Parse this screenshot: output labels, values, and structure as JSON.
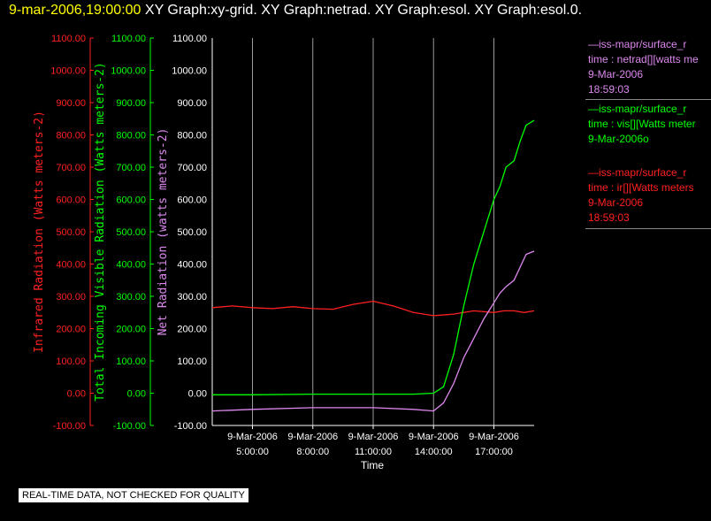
{
  "header": {
    "timestamp": "9-mar-2006,19:00:00",
    "graphs": "XY Graph:xy-grid.  XY Graph:netrad.  XY Graph:esol.  XY Graph:esol.0."
  },
  "legend": [
    {
      "line1": "—iss-mapr/surface_r",
      "line2": "time : netrad[][watts me",
      "line3": "9-Mar-2006",
      "line4": "18:59:03",
      "color": "#dd88ee"
    },
    {
      "line1": "—iss-mapr/surface_r",
      "line2": "time : vis[][Watts meter",
      "line3": "9-Mar-2006o",
      "line4": "",
      "color": "#00ff00"
    },
    {
      "line1": "—iss-mapr/surface_r",
      "line2": "time : ir[][Watts meters",
      "line3": "9-Mar-2006",
      "line4": "18:59:03",
      "color": "#ff2020"
    }
  ],
  "note": "REAL-TIME DATA, NOT CHECKED FOR QUALITY",
  "chart_data": {
    "type": "line",
    "xlabel": "Time",
    "x_ticks": [
      {
        "date": "9-Mar-2006",
        "time": "5:00:00",
        "hour": 5
      },
      {
        "date": "9-Mar-2006",
        "time": "8:00:00",
        "hour": 8
      },
      {
        "date": "9-Mar-2006",
        "time": "11:00:00",
        "hour": 11
      },
      {
        "date": "9-Mar-2006",
        "time": "14:00:00",
        "hour": 14
      },
      {
        "date": "9-Mar-2006",
        "time": "17:00:00",
        "hour": 17
      }
    ],
    "xlim": [
      3.0,
      19.0
    ],
    "ylim": [
      -100,
      1100
    ],
    "y_ticks": [
      "-100.00",
      "0.00",
      "100.00",
      "200.00",
      "300.00",
      "400.00",
      "500.00",
      "600.00",
      "700.00",
      "800.00",
      "900.00",
      "1000.00",
      "1100.00"
    ],
    "axes": [
      {
        "label": "Infrared Radiation (Watts meters-2)",
        "color": "#ff2020"
      },
      {
        "label": "Total Incoming Visible Radiation (Watts meters-2)",
        "color": "#00ff00"
      },
      {
        "label": "Net Radiation (watts meters-2)",
        "color": "#dd88ee"
      }
    ],
    "grid": true,
    "series": [
      {
        "name": "ir",
        "color": "#ff2020",
        "x": [
          3,
          4,
          5,
          6,
          7,
          8,
          9,
          10,
          11,
          12,
          13,
          14,
          15,
          16,
          17,
          17.5,
          18,
          18.5,
          19
        ],
        "y": [
          265,
          270,
          265,
          262,
          268,
          262,
          260,
          275,
          285,
          270,
          250,
          240,
          245,
          255,
          250,
          255,
          255,
          250,
          255
        ]
      },
      {
        "name": "vis",
        "color": "#00ff00",
        "x": [
          3,
          5,
          8,
          11,
          13,
          14,
          14.5,
          15,
          15.5,
          16,
          16.5,
          17,
          17.3,
          17.6,
          18,
          18.3,
          18.6,
          19
        ],
        "y": [
          -5,
          -5,
          -3,
          -3,
          -3,
          0,
          20,
          120,
          270,
          400,
          500,
          600,
          640,
          700,
          720,
          780,
          830,
          845
        ]
      },
      {
        "name": "netrad",
        "color": "#dd88ee",
        "x": [
          3,
          5,
          8,
          11,
          13,
          14,
          14.5,
          15,
          15.5,
          16,
          16.5,
          17,
          17.3,
          17.6,
          18,
          18.3,
          18.6,
          19
        ],
        "y": [
          -55,
          -50,
          -45,
          -45,
          -50,
          -55,
          -30,
          30,
          110,
          170,
          230,
          280,
          310,
          330,
          350,
          390,
          430,
          440
        ]
      }
    ]
  }
}
